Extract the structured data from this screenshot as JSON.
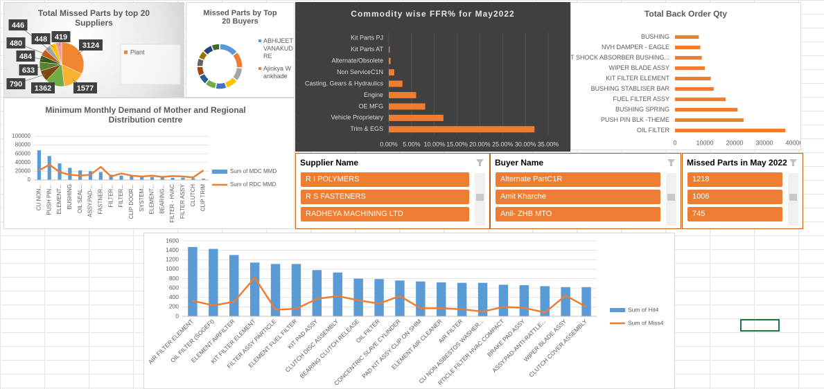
{
  "chart_data": [
    {
      "type": "pie",
      "title": "Total Missed Parts by top 20 Suppliers",
      "legend": "Plant",
      "values": [
        3124,
        1577,
        1362,
        790,
        633,
        484,
        480,
        446,
        448,
        419
      ],
      "colors": [
        "#f0862f",
        "#f9b233",
        "#70ad47",
        "#7b4a12",
        "#5a7f2d",
        "#2e5e1f",
        "#c55a11",
        "#a5a5a5",
        "#ffc000",
        "#ec9ba0"
      ]
    },
    {
      "type": "doughnut",
      "title": "Missed Parts by Top 20 Buyers",
      "categories": [
        "ABHIJEET VANAKUDRE",
        "Ajinkya Wankhade",
        null,
        null,
        null,
        null,
        null,
        null,
        null,
        null,
        null,
        null
      ],
      "values": [
        14,
        12,
        10,
        9,
        8,
        8,
        7,
        7,
        6,
        6,
        7,
        6
      ],
      "colors": [
        "#5b9bd5",
        "#ed7d31",
        "#a5a5a5",
        "#ffc000",
        "#4472c4",
        "#70ad47",
        "#255e91",
        "#9e480e",
        "#636363",
        "#997300",
        "#264478",
        "#43682b"
      ]
    },
    {
      "type": "bar",
      "orientation": "horizontal",
      "title": "Commodity wise FFR% for May2022",
      "background": "#404040",
      "color": "#ed7d31",
      "grid": true,
      "categories": [
        "Kit Parts PJ",
        "Kit Parts AT",
        "Alternate/Obsolete",
        "Non ServiceC1N",
        "Casting, Gears & Hydraulics",
        "Engine",
        "OE MFG",
        "Vehicle Proprietary",
        "Trim & EGS"
      ],
      "values": [
        0,
        0.2,
        0.4,
        1.2,
        3,
        6,
        8,
        12,
        32
      ],
      "xlim": [
        0,
        35
      ],
      "xticks": [
        {
          "value": 0,
          "label": "0.00%"
        },
        {
          "value": 5,
          "label": "5.00%"
        },
        {
          "value": 10,
          "label": "10.00%"
        },
        {
          "value": 15,
          "label": "15.00%"
        },
        {
          "value": 20,
          "label": "20.00%"
        },
        {
          "value": 25,
          "label": "25.00%"
        },
        {
          "value": 30,
          "label": "30.00%"
        },
        {
          "value": 35,
          "label": "35.00%"
        }
      ]
    },
    {
      "type": "bar",
      "orientation": "horizontal",
      "title": "Total Back Order Qty",
      "background": "#ffffff",
      "color": "#ed7d31",
      "grid": false,
      "categories": [
        "BUSHING",
        "NVH DAMPER - EAGLE",
        "KIT SHOCK ABSORBER BUSHING...",
        "WIPER BLADE ASSY",
        "KIT FILTER ELEMENT",
        "BUSHING STABLISER BAR",
        "FUEL FILTER ASSY",
        "BUSHING SPRING",
        "PUSH PIN BLK -THEME",
        "OIL FILTER"
      ],
      "values": [
        8000,
        8500,
        9000,
        10000,
        12000,
        13000,
        17000,
        21000,
        23000,
        37000
      ],
      "xlim": [
        0,
        40000
      ],
      "xticks": [
        0,
        10000,
        20000,
        30000,
        40000
      ]
    },
    {
      "type": "combo",
      "title": "Minimum Monthly Demand of Mother and Regional Distribution centre",
      "grid": true,
      "categories": [
        "CU NON...",
        "PUSH PIN...",
        "ELEMENT...",
        "BUSHING",
        "OIL SEAL...",
        "ASSY.PAD-...",
        "FASTNER...",
        "FILTER...",
        "FILTER...",
        "CLIP DOOR...",
        "SYSTEM...",
        "ELEMENT...",
        "BEARING...",
        "FILTER - HVAC",
        "FILTER ASSY",
        "CLUTCH",
        "CLIP TRIM"
      ],
      "series": [
        {
          "name": "Sum of MDC MMD",
          "type": "bar",
          "color": "#5b9bd5",
          "values": [
            68000,
            55000,
            38000,
            28000,
            22000,
            20000,
            18000,
            12000,
            10000,
            9000,
            8000,
            7000,
            6000,
            5000,
            5000,
            4000,
            3000
          ]
        },
        {
          "name": "Sum of RDC MMD",
          "type": "line",
          "color": "#ed7d31",
          "values": [
            22000,
            35000,
            18000,
            12000,
            10000,
            12000,
            30000,
            8000,
            15000,
            10000,
            8000,
            10000,
            7000,
            9000,
            8000,
            6000,
            22000
          ]
        }
      ],
      "ylim": [
        0,
        100000
      ],
      "yticks": [
        0,
        20000,
        40000,
        60000,
        80000,
        100000
      ]
    },
    {
      "type": "combo",
      "grid": true,
      "categories": [
        "AIR FILTER ELEMENT",
        "OIL FILTER (SOGEFI)",
        "ELEMENT AIRFILTER",
        "KIT FILTER ELEMENT",
        "FILTER ASSY PARTICLE",
        "ELEMENT FUEL FILTER",
        "KIT PAD ASSY",
        "CLUTCH DISC ASSEMBLY",
        "BEARING CLUTCH RELEASE",
        "OIL FILTER",
        "CONCENTRIC SLAVE CYLINDER",
        "PAD KIT ASSY CLIP ON SHIM",
        "ELEMENT AIR CLEANER",
        "AIR FILTER",
        "CU NON ASBESTOS WASHER...",
        "RTICLE FILTER HVAC COMPACT",
        "BRAKE PAD ASSY",
        "ASSY.PAD-ANTI-RATTLE...",
        "WIPER BLADE ASSY",
        "CLUTCH COVER ASSEMBLY"
      ],
      "series": [
        {
          "name": "Sum of Hit4",
          "type": "bar",
          "color": "#5b9bd5",
          "values": [
            1470,
            1430,
            1300,
            1140,
            1110,
            1110,
            980,
            930,
            800,
            790,
            760,
            740,
            720,
            710,
            710,
            670,
            660,
            640,
            620,
            620
          ]
        },
        {
          "name": "Sum of Miss4",
          "type": "line",
          "color": "#ed7d31",
          "values": [
            330,
            230,
            310,
            820,
            140,
            160,
            370,
            430,
            340,
            270,
            430,
            170,
            170,
            150,
            100,
            200,
            180,
            80,
            440,
            200
          ]
        }
      ],
      "ylim": [
        0,
        1600
      ],
      "yticks": [
        0,
        200,
        400,
        600,
        800,
        1000,
        1200,
        1400,
        1600
      ]
    }
  ],
  "slicers": [
    {
      "title": "Supplier Name",
      "items": [
        "R I POLYMERS",
        "R S FASTENERS",
        "RADHEYA MACHINING LTD"
      ]
    },
    {
      "title": "Buyer Name",
      "items": [
        "Alternate PartC1R",
        "Amit Kharche",
        "Anil- ZHB MTO"
      ]
    },
    {
      "title": "Missed Parts in May 2022",
      "items": [
        "1218",
        "1006",
        "745"
      ]
    }
  ]
}
